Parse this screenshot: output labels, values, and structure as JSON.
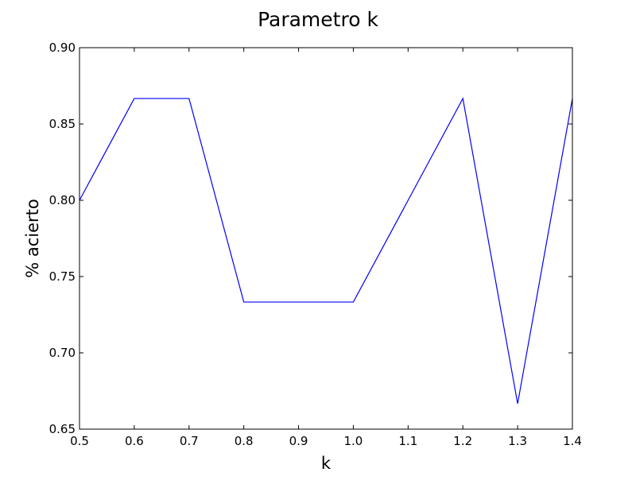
{
  "chart_data": {
    "type": "line",
    "title": "Parametro k",
    "xlabel": "k",
    "ylabel": "% acierto",
    "xlim": [
      0.5,
      1.4
    ],
    "ylim": [
      0.65,
      0.9
    ],
    "xticks": [
      0.5,
      0.6,
      0.7,
      0.8,
      0.9,
      1.0,
      1.1,
      1.2,
      1.3,
      1.4
    ],
    "xtick_labels": [
      "0.5",
      "0.6",
      "0.7",
      "0.8",
      "0.9",
      "1.0",
      "1.1",
      "1.2",
      "1.3",
      "1.4"
    ],
    "yticks": [
      0.65,
      0.7,
      0.75,
      0.8,
      0.85,
      0.9
    ],
    "ytick_labels": [
      "0.65",
      "0.70",
      "0.75",
      "0.80",
      "0.85",
      "0.90"
    ],
    "grid": false,
    "legend": "none",
    "series": [
      {
        "color": "#0000ff",
        "x": [
          0.5,
          0.6,
          0.7,
          0.8,
          0.9,
          1.0,
          1.1,
          1.2,
          1.3,
          1.4
        ],
        "y": [
          0.8,
          0.8667,
          0.8667,
          0.7333,
          0.7333,
          0.7333,
          0.8,
          0.8667,
          0.6667,
          0.8667
        ]
      }
    ]
  }
}
